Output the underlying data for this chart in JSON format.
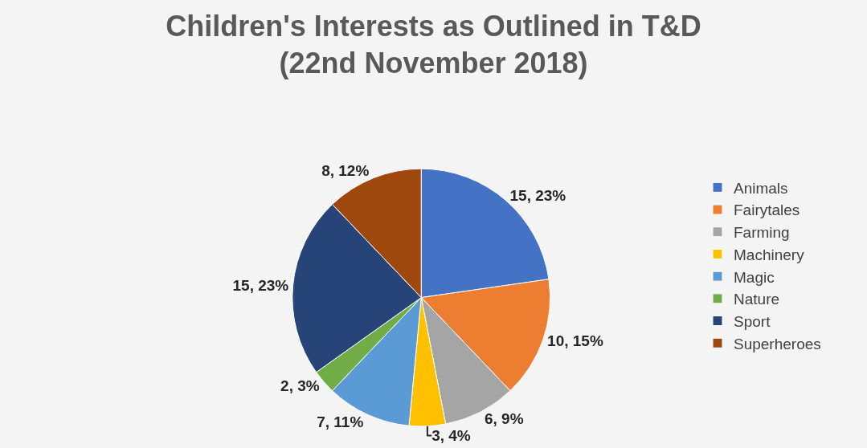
{
  "chart_data": {
    "type": "pie",
    "title": "Children's Interests as Outlined in T&D\n(22nd November 2018)",
    "categories": [
      "Animals",
      "Fairytales",
      "Farming",
      "Machinery",
      "Magic",
      "Nature",
      "Sport",
      "Superheroes"
    ],
    "values": [
      15,
      10,
      6,
      3,
      7,
      2,
      15,
      8
    ],
    "colors": [
      "#4472c4",
      "#ed7d31",
      "#a5a5a5",
      "#ffc000",
      "#5b9bd5",
      "#70ad47",
      "#264478",
      "#9e480e"
    ],
    "value_labels": [
      "15, 23%",
      "10, 15%",
      "6, 9%",
      "3, 4%",
      "7, 11%",
      "2, 3%",
      "15, 23%",
      "8, 12%"
    ],
    "legend": "right"
  }
}
